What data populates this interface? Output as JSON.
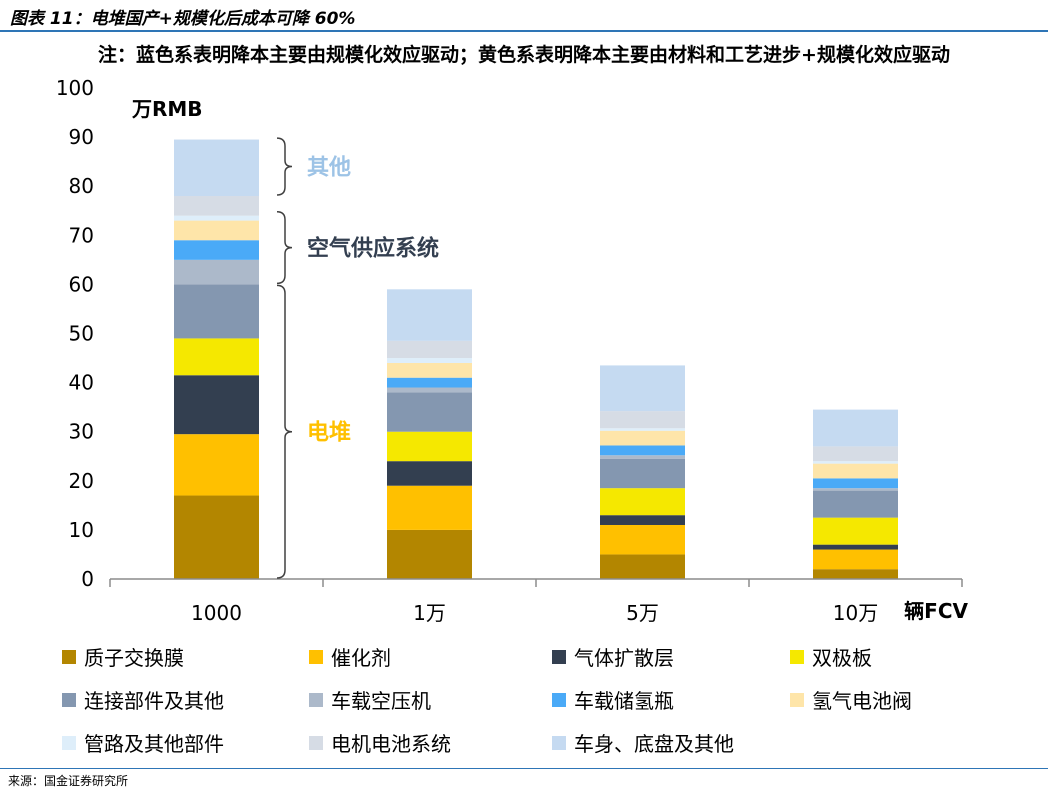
{
  "header": {
    "figure_title": "图表 11：电堆国产+规模化后成本可降 60%",
    "note": "注：蓝色系表明降本主要由规模化效应驱动；黄色系表明降本主要由材料和工艺进步+规模化效应驱动"
  },
  "footer": {
    "source": "来源：国金证券研究所"
  },
  "chart_data": {
    "type": "bar",
    "stacked": true,
    "ylabel": "万RMB",
    "xlabel": "辆FCV",
    "ylim": [
      0,
      100
    ],
    "yticks": [
      0,
      10,
      20,
      30,
      40,
      50,
      60,
      70,
      80,
      90,
      100
    ],
    "categories": [
      "1000",
      "1万",
      "5万",
      "10万"
    ],
    "series": [
      {
        "name": "质子交换膜",
        "color": "#b38600",
        "values": [
          17,
          10,
          5,
          2
        ]
      },
      {
        "name": "催化剂",
        "color": "#ffc000",
        "values": [
          12.5,
          9,
          6,
          4
        ]
      },
      {
        "name": "气体扩散层",
        "color": "#333f50",
        "values": [
          12,
          5,
          2,
          1
        ]
      },
      {
        "name": "双极板",
        "color": "#f5e800",
        "values": [
          7.5,
          6,
          5.5,
          5.5
        ]
      },
      {
        "name": "连接部件及其他",
        "color": "#8497b0",
        "values": [
          11,
          8,
          6,
          5.5
        ]
      },
      {
        "name": "车载空压机",
        "color": "#acb9ca",
        "values": [
          5,
          1,
          0.7,
          0.5
        ]
      },
      {
        "name": "车载储氢瓶",
        "color": "#4aaaf7",
        "values": [
          4,
          2,
          2,
          2
        ]
      },
      {
        "name": "氢气电池阀",
        "color": "#fee5a9",
        "values": [
          4,
          3,
          3,
          3
        ]
      },
      {
        "name": "管路及其他部件",
        "color": "#deeefa",
        "values": [
          1,
          1,
          0.5,
          0.5
        ]
      },
      {
        "name": "电机电池系统",
        "color": "#d6dce5",
        "values": [
          4,
          3.5,
          3.5,
          3
        ]
      },
      {
        "name": "车身、底盘及其他",
        "color": "#c5daf1",
        "values": [
          11.5,
          10.5,
          9.3,
          7.5
        ]
      }
    ],
    "annotations": [
      {
        "label": "其他",
        "color": "#9dc3e6",
        "from": 78,
        "to": 90
      },
      {
        "label": "空气供应系统",
        "color": "#333f50",
        "from": 60,
        "to": 75
      },
      {
        "label": "电堆",
        "color": "#ffc000",
        "from": 0,
        "to": 60
      }
    ],
    "grid": false,
    "legend_position": "bottom"
  }
}
